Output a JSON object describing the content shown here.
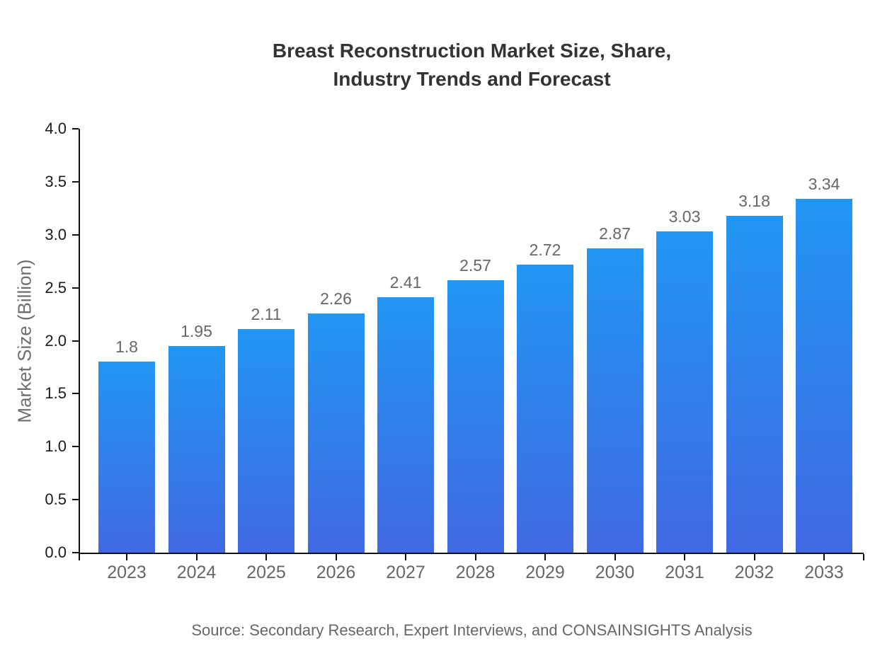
{
  "title": {
    "line1": "Breast Reconstruction Market Size, Share,",
    "line2": "Industry Trends and Forecast"
  },
  "source_note": "Source: Secondary Research, Expert Interviews, and CONSAINSIGHTS Analysis",
  "chart_data": {
    "type": "bar",
    "title": "Breast Reconstruction Market Size, Share, Industry Trends and Forecast",
    "xlabel": "",
    "ylabel": "Market Size (Billion)",
    "categories": [
      "2023",
      "2024",
      "2025",
      "2026",
      "2027",
      "2028",
      "2029",
      "2030",
      "2031",
      "2032",
      "2033"
    ],
    "values": [
      1.8,
      1.95,
      2.11,
      2.26,
      2.41,
      2.57,
      2.72,
      2.87,
      3.03,
      3.18,
      3.34
    ],
    "value_labels": [
      "1.8",
      "1.95",
      "2.11",
      "2.26",
      "2.41",
      "2.57",
      "2.72",
      "2.87",
      "3.03",
      "3.18",
      "3.34"
    ],
    "ylim": [
      0.0,
      4.0
    ],
    "yticks": [
      "0.0",
      "0.5",
      "1.0",
      "1.5",
      "2.0",
      "2.5",
      "3.0",
      "3.5",
      "4.0"
    ],
    "grid": false,
    "legend": "none",
    "colors": {
      "bar_gradient_top": "#2196f3",
      "bar_gradient_bottom": "#4169e1",
      "axis": "#111111",
      "title_text": "#333333",
      "tick_label": "#1a1a1a",
      "category_label": "#666666",
      "value_label": "#666666",
      "ylabel_text": "#6e6e6e",
      "source_text": "#666666"
    }
  }
}
